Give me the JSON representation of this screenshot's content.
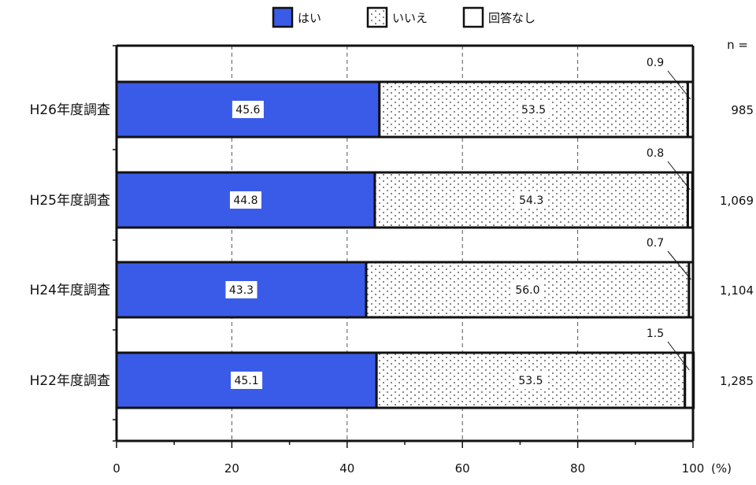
{
  "chart_data": {
    "type": "bar",
    "orientation": "horizontal",
    "stacked": true,
    "legend_position": "top",
    "categories": [
      "H26年度調査",
      "H25年度調査",
      "H24年度調査",
      "H22年度調査"
    ],
    "series": [
      {
        "name": "はい",
        "values": [
          45.6,
          44.8,
          43.3,
          45.1
        ],
        "color": "#3a5be8",
        "pattern": "solid"
      },
      {
        "name": "いいえ",
        "values": [
          53.5,
          54.3,
          56.0,
          53.5
        ],
        "color": "#ffffff",
        "pattern": "dots"
      },
      {
        "name": "回答なし",
        "values": [
          0.9,
          0.8,
          0.7,
          1.5
        ],
        "color": "#ffffff",
        "pattern": "none"
      }
    ],
    "n_header": "n =",
    "n_values": [
      "985",
      "1,069",
      "1,104",
      "1,285"
    ],
    "xlim": [
      0,
      100
    ],
    "xticks": [
      "0",
      "20",
      "40",
      "60",
      "80",
      "100"
    ],
    "xlabel_unit": "(%)",
    "grid": "vertical dashed"
  }
}
